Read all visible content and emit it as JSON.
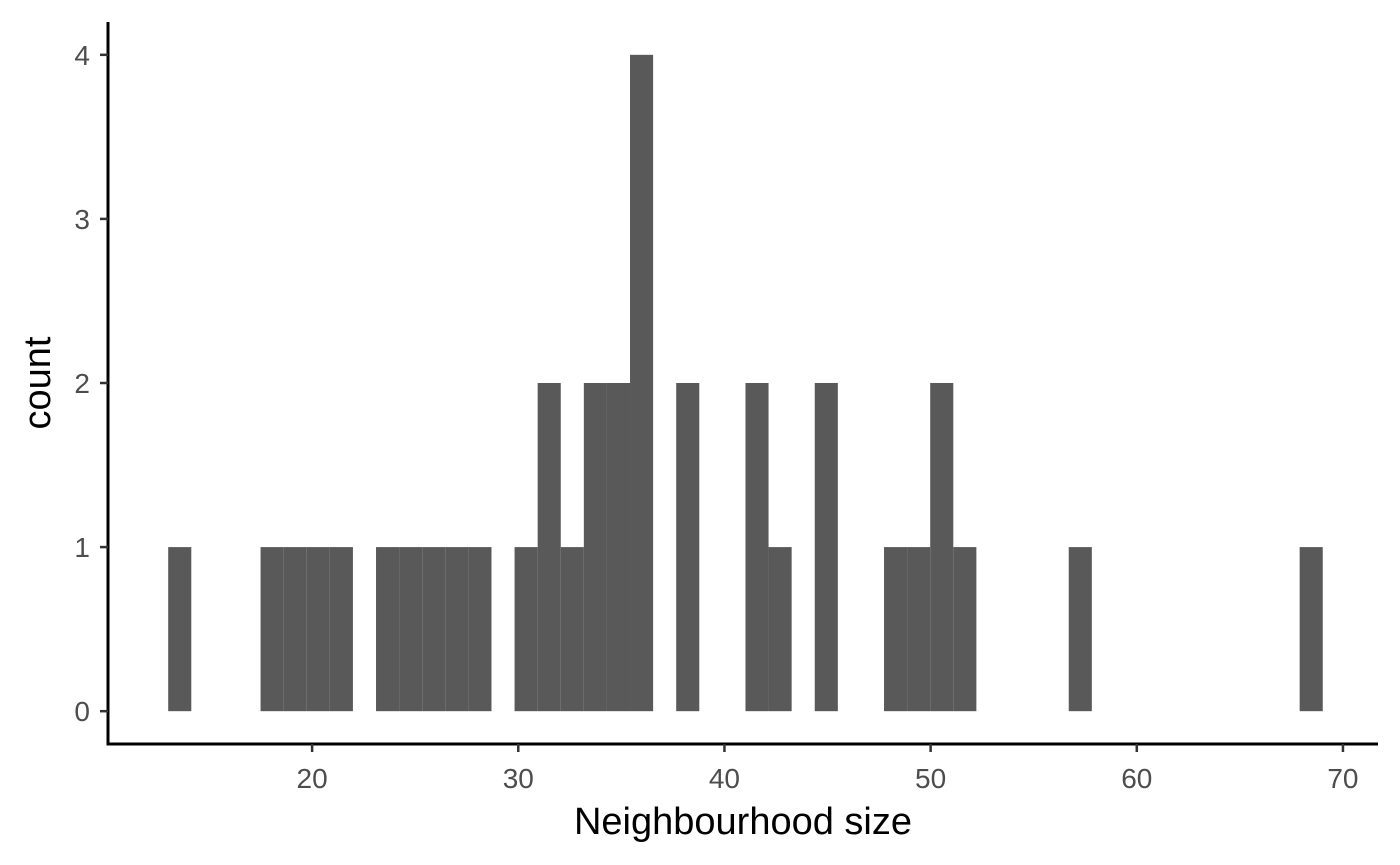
{
  "chart_data": {
    "type": "bar",
    "title": "",
    "xlabel": "Neighbourhood size",
    "ylabel": "count",
    "xlim": [
      10.1,
      71.7
    ],
    "ylim": [
      -0.2,
      4.2
    ],
    "x_ticks": [
      20,
      30,
      40,
      50,
      60,
      70
    ],
    "y_ticks": [
      0,
      1,
      2,
      3,
      4
    ],
    "bin_width": 1.12,
    "grid": false,
    "legend": "none",
    "bar_color": "#595959",
    "bins": [
      {
        "x": 13.58,
        "count": 1
      },
      {
        "x": 18.06,
        "count": 1
      },
      {
        "x": 19.18,
        "count": 1
      },
      {
        "x": 20.3,
        "count": 1
      },
      {
        "x": 21.42,
        "count": 1
      },
      {
        "x": 23.66,
        "count": 1
      },
      {
        "x": 24.78,
        "count": 1
      },
      {
        "x": 25.9,
        "count": 1
      },
      {
        "x": 27.02,
        "count": 1
      },
      {
        "x": 28.14,
        "count": 1
      },
      {
        "x": 30.38,
        "count": 1
      },
      {
        "x": 31.5,
        "count": 2
      },
      {
        "x": 32.62,
        "count": 1
      },
      {
        "x": 33.74,
        "count": 2
      },
      {
        "x": 34.86,
        "count": 2
      },
      {
        "x": 35.98,
        "count": 4
      },
      {
        "x": 38.22,
        "count": 2
      },
      {
        "x": 41.58,
        "count": 2
      },
      {
        "x": 42.7,
        "count": 1
      },
      {
        "x": 44.94,
        "count": 2
      },
      {
        "x": 48.3,
        "count": 1
      },
      {
        "x": 49.42,
        "count": 1
      },
      {
        "x": 50.54,
        "count": 2
      },
      {
        "x": 51.66,
        "count": 1
      },
      {
        "x": 57.26,
        "count": 1
      },
      {
        "x": 68.46,
        "count": 1
      }
    ]
  }
}
